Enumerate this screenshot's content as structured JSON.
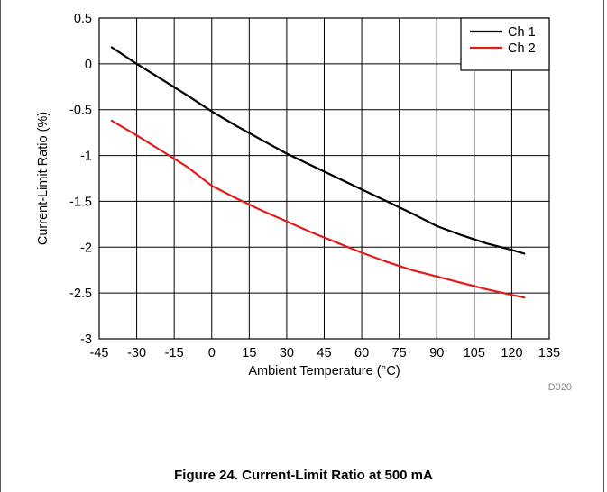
{
  "figure_code": "D020",
  "caption": "Figure 24. Current-Limit Ratio at 500 mA",
  "colors": {
    "ch1": "#000000",
    "ch2": "#e31b1b",
    "grid": "#000000",
    "frame": "#555555"
  },
  "chart_data": {
    "type": "line",
    "title": "",
    "xlabel": "Ambient Temperature (°C)",
    "ylabel": "Current-Limit Ratio (%)",
    "xlim": [
      -45,
      135
    ],
    "ylim": [
      -3,
      0.5
    ],
    "xticks": [
      -45,
      -30,
      -15,
      0,
      15,
      30,
      45,
      60,
      75,
      90,
      105,
      120,
      135
    ],
    "yticks": [
      0.5,
      0,
      -0.5,
      -1,
      -1.5,
      -2,
      -2.5,
      -3
    ],
    "ytick_labels": [
      "0.5",
      "0",
      "-0.5",
      "-1",
      "-1.5",
      "-2",
      "-2.5",
      "-3"
    ],
    "grid": true,
    "legend_position": "top-right",
    "series": [
      {
        "name": "Ch 1",
        "color": "#000000",
        "x": [
          -40,
          -30,
          -20,
          -10,
          0,
          10,
          20,
          30,
          40,
          50,
          60,
          70,
          80,
          90,
          100,
          110,
          120,
          125
        ],
        "y": [
          0.18,
          0.0,
          -0.17,
          -0.34,
          -0.52,
          -0.68,
          -0.83,
          -0.98,
          -1.11,
          -1.24,
          -1.37,
          -1.5,
          -1.63,
          -1.77,
          -1.87,
          -1.96,
          -2.03,
          -2.07
        ]
      },
      {
        "name": "Ch 2",
        "color": "#e31b1b",
        "x": [
          -40,
          -30,
          -20,
          -10,
          0,
          10,
          20,
          30,
          40,
          50,
          60,
          70,
          80,
          90,
          100,
          110,
          120,
          125
        ],
        "y": [
          -0.62,
          -0.78,
          -0.95,
          -1.12,
          -1.33,
          -1.47,
          -1.6,
          -1.72,
          -1.84,
          -1.95,
          -2.06,
          -2.16,
          -2.25,
          -2.32,
          -2.39,
          -2.46,
          -2.52,
          -2.55
        ]
      }
    ]
  }
}
